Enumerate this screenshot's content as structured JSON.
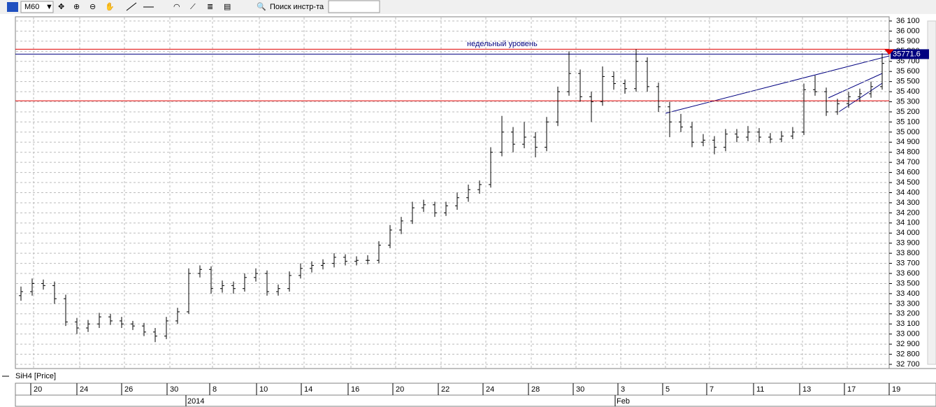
{
  "toolbar": {
    "interval": "M60",
    "search": "Поиск инстр-та"
  },
  "chart_data": {
    "type": "ohlc",
    "legend": "SiH4 [Price]",
    "annotation": "недельный уровень",
    "ylim": [
      32700,
      36100
    ],
    "yticks": [
      {
        "value": 32700,
        "label": "32 700"
      },
      {
        "value": 32800,
        "label": "32 800"
      },
      {
        "value": 32900,
        "label": "32 900"
      },
      {
        "value": 33000,
        "label": "33 000"
      },
      {
        "value": 33100,
        "label": "33 100"
      },
      {
        "value": 33200,
        "label": "33 200"
      },
      {
        "value": 33300,
        "label": "33 300"
      },
      {
        "value": 33400,
        "label": "33 400"
      },
      {
        "value": 33500,
        "label": "33 500"
      },
      {
        "value": 33600,
        "label": "33 600"
      },
      {
        "value": 33700,
        "label": "33 700"
      },
      {
        "value": 33800,
        "label": "33 800"
      },
      {
        "value": 33900,
        "label": "33 900"
      },
      {
        "value": 34000,
        "label": "34 000"
      },
      {
        "value": 34100,
        "label": "34 100"
      },
      {
        "value": 34200,
        "label": "34 200"
      },
      {
        "value": 34300,
        "label": "34 300"
      },
      {
        "value": 34400,
        "label": "34 400"
      },
      {
        "value": 34500,
        "label": "34 500"
      },
      {
        "value": 34600,
        "label": "34 600"
      },
      {
        "value": 34700,
        "label": "34 700"
      },
      {
        "value": 34800,
        "label": "34 800"
      },
      {
        "value": 34900,
        "label": "34 900"
      },
      {
        "value": 35000,
        "label": "35 000"
      },
      {
        "value": 35100,
        "label": "35 100"
      },
      {
        "value": 35200,
        "label": "35 200"
      },
      {
        "value": 35300,
        "label": "35 300"
      },
      {
        "value": 35400,
        "label": "35 400"
      },
      {
        "value": 35500,
        "label": "35 500"
      },
      {
        "value": 35600,
        "label": "35 600"
      },
      {
        "value": 35700,
        "label": "35 700"
      },
      {
        "value": 35800,
        "label": "35 800"
      },
      {
        "value": 35900,
        "label": "35 900"
      },
      {
        "value": 36000,
        "label": "36 000"
      },
      {
        "value": 36100,
        "label": "36 100"
      }
    ],
    "grid": true,
    "color": "#000000",
    "x_labels": [
      "20",
      "24",
      "26",
      "30",
      "8",
      "10",
      "14",
      "16",
      "20",
      "22",
      "24",
      "28",
      "30",
      "3",
      "5",
      "7",
      "11",
      "13",
      "17",
      "19"
    ],
    "x_periods": [
      "2014",
      "Feb"
    ],
    "levels": [
      {
        "value": 35820,
        "color": "#e00000"
      },
      {
        "value": 35771.6,
        "color": "#000080"
      },
      {
        "value": 35310,
        "color": "#e00000"
      }
    ],
    "ohlc": [
      [
        33380,
        33470,
        33330,
        33420
      ],
      [
        33420,
        33550,
        33380,
        33500
      ],
      [
        33500,
        33540,
        33440,
        33480
      ],
      [
        33480,
        33520,
        33300,
        33350
      ],
      [
        33350,
        33390,
        33080,
        33120
      ],
      [
        33120,
        33160,
        33000,
        33060
      ],
      [
        33060,
        33140,
        33020,
        33100
      ],
      [
        33100,
        33210,
        33060,
        33170
      ],
      [
        33170,
        33200,
        33090,
        33130
      ],
      [
        33130,
        33170,
        33060,
        33100
      ],
      [
        33100,
        33130,
        33040,
        33080
      ],
      [
        33080,
        33110,
        32980,
        33020
      ],
      [
        33020,
        33060,
        32920,
        32980
      ],
      [
        32980,
        33170,
        32950,
        33130
      ],
      [
        33130,
        33260,
        33100,
        33220
      ],
      [
        33220,
        33650,
        33200,
        33600
      ],
      [
        33600,
        33680,
        33560,
        33640
      ],
      [
        33640,
        33670,
        33400,
        33450
      ],
      [
        33450,
        33530,
        33410,
        33480
      ],
      [
        33480,
        33520,
        33400,
        33450
      ],
      [
        33450,
        33600,
        33420,
        33560
      ],
      [
        33560,
        33650,
        33520,
        33600
      ],
      [
        33600,
        33630,
        33380,
        33420
      ],
      [
        33420,
        33490,
        33380,
        33450
      ],
      [
        33450,
        33620,
        33420,
        33580
      ],
      [
        33580,
        33700,
        33550,
        33650
      ],
      [
        33650,
        33720,
        33610,
        33680
      ],
      [
        33680,
        33740,
        33640,
        33700
      ],
      [
        33700,
        33800,
        33660,
        33760
      ],
      [
        33760,
        33790,
        33680,
        33720
      ],
      [
        33720,
        33770,
        33680,
        33730
      ],
      [
        33730,
        33780,
        33690,
        33730
      ],
      [
        33730,
        33920,
        33700,
        33880
      ],
      [
        33880,
        34080,
        33850,
        34030
      ],
      [
        34030,
        34160,
        33990,
        34120
      ],
      [
        34120,
        34310,
        34090,
        34250
      ],
      [
        34250,
        34330,
        34210,
        34280
      ],
      [
        34280,
        34310,
        34160,
        34200
      ],
      [
        34200,
        34310,
        34170,
        34270
      ],
      [
        34270,
        34400,
        34230,
        34350
      ],
      [
        34350,
        34480,
        34310,
        34430
      ],
      [
        34430,
        34520,
        34390,
        34480
      ],
      [
        34480,
        34850,
        34450,
        34800
      ],
      [
        34800,
        35160,
        34760,
        35000
      ],
      [
        35000,
        35050,
        34800,
        34880
      ],
      [
        34880,
        35100,
        34840,
        34950
      ],
      [
        34950,
        35000,
        34750,
        34850
      ],
      [
        34850,
        35150,
        34810,
        35100
      ],
      [
        35100,
        35450,
        35060,
        35400
      ],
      [
        35400,
        35800,
        35360,
        35580
      ],
      [
        35580,
        35620,
        35300,
        35350
      ],
      [
        35350,
        35400,
        35100,
        35300
      ],
      [
        35300,
        35650,
        35260,
        35550
      ],
      [
        35550,
        35600,
        35420,
        35480
      ],
      [
        35480,
        35520,
        35380,
        35430
      ],
      [
        35430,
        35820,
        35400,
        35700
      ],
      [
        35700,
        35740,
        35400,
        35450
      ],
      [
        35450,
        35490,
        35200,
        35250
      ],
      [
        35250,
        35300,
        34950,
        35100
      ],
      [
        35100,
        35180,
        35000,
        35050
      ],
      [
        35050,
        35100,
        34850,
        34900
      ],
      [
        34900,
        34980,
        34860,
        34920
      ],
      [
        34920,
        34960,
        34780,
        34850
      ],
      [
        34850,
        35030,
        34810,
        34980
      ],
      [
        34980,
        35030,
        34900,
        34950
      ],
      [
        34950,
        35060,
        34910,
        35000
      ],
      [
        35000,
        35040,
        34900,
        34950
      ],
      [
        34950,
        34990,
        34890,
        34930
      ],
      [
        34930,
        35010,
        34900,
        34960
      ],
      [
        34960,
        35050,
        34930,
        35000
      ],
      [
        35000,
        35480,
        34970,
        35420
      ],
      [
        35420,
        35560,
        35360,
        35400
      ],
      [
        35400,
        35440,
        35160,
        35200
      ],
      [
        35200,
        35330,
        35170,
        35280
      ],
      [
        35280,
        35400,
        35240,
        35350
      ],
      [
        35350,
        35430,
        35300,
        35380
      ],
      [
        35380,
        35500,
        35340,
        35450
      ],
      [
        35450,
        35780,
        35420,
        35680
      ]
    ]
  }
}
